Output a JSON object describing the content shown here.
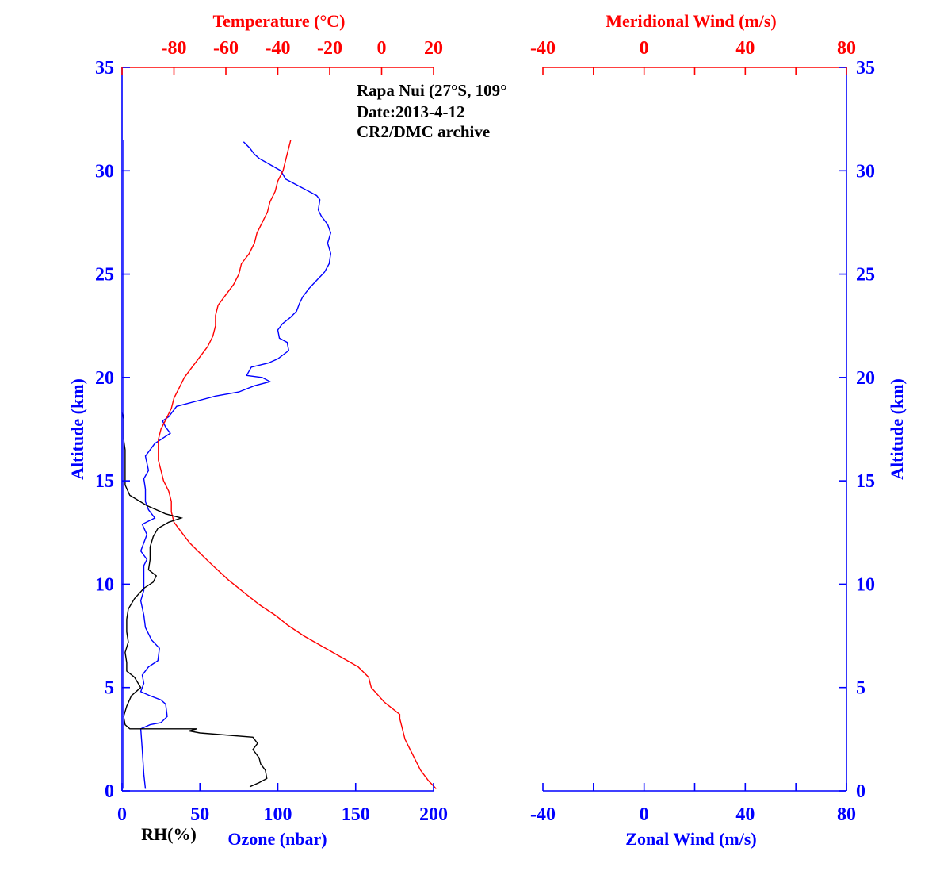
{
  "colors": {
    "blue": "#0000ff",
    "red": "#ff0000",
    "black": "#000000"
  },
  "annotation": {
    "line1": "Rapa Nui (27°S, 109°",
    "line2": "Date:2013-4-12",
    "line3": "CR2/DMC archive"
  },
  "chart_data": [
    {
      "type": "line",
      "panel": "left",
      "ylabel": "Altitude (km)",
      "ylim": [
        0,
        35
      ],
      "y_ticks": [
        0,
        5,
        10,
        15,
        20,
        25,
        30,
        35
      ],
      "y_tick_labels": [
        "0",
        "5",
        "10",
        "15",
        "20",
        "25",
        "30",
        "35"
      ],
      "bottom_axis": {
        "label": "Ozone (nbar)",
        "label2": "RH(%)",
        "lim": [
          0,
          200
        ],
        "ticks": [
          0,
          50,
          100,
          150,
          200
        ],
        "tick_labels": [
          "0",
          "50",
          "100",
          "150",
          "200"
        ]
      },
      "top_axis": {
        "label": "Temperature (°C)",
        "lim": [
          -100,
          20
        ],
        "ticks": [
          -100,
          -80,
          -60,
          -40,
          -20,
          0,
          20
        ],
        "tick_labels": [
          "-80",
          "-60",
          "-40",
          "-20",
          "0",
          "20"
        ],
        "labeled_ticks": [
          -80,
          -60,
          -40,
          -20,
          0,
          20
        ]
      },
      "series": [
        {
          "name": "Ozone",
          "axis": "bottom",
          "color": "#0000ff",
          "points": [
            [
              15,
              0.1
            ],
            [
              14,
              0.8
            ],
            [
              13,
              2.0
            ],
            [
              12,
              3.0
            ],
            [
              18,
              3.2
            ],
            [
              25,
              3.3
            ],
            [
              29,
              3.6
            ],
            [
              28,
              4.2
            ],
            [
              25,
              4.4
            ],
            [
              18,
              4.6
            ],
            [
              12,
              4.8
            ],
            [
              14,
              5.2
            ],
            [
              13,
              5.6
            ],
            [
              17,
              6.0
            ],
            [
              23,
              6.3
            ],
            [
              24,
              6.9
            ],
            [
              19,
              7.3
            ],
            [
              15,
              7.9
            ],
            [
              14,
              8.5
            ],
            [
              12,
              9.2
            ],
            [
              14,
              9.7
            ],
            [
              14,
              10.3
            ],
            [
              14,
              10.9
            ],
            [
              16,
              11.2
            ],
            [
              12,
              11.6
            ],
            [
              16,
              12.4
            ],
            [
              13,
              12.9
            ],
            [
              21,
              13.2
            ],
            [
              17,
              13.6
            ],
            [
              15,
              14.0
            ],
            [
              15,
              14.6
            ],
            [
              14,
              15.1
            ],
            [
              17,
              15.5
            ],
            [
              15,
              16.2
            ],
            [
              21,
              16.8
            ],
            [
              31,
              17.3
            ],
            [
              28,
              17.6
            ],
            [
              26,
              17.9
            ],
            [
              30,
              18.1
            ],
            [
              35,
              18.6
            ],
            [
              50,
              18.9
            ],
            [
              60,
              19.1
            ],
            [
              75,
              19.3
            ],
            [
              85,
              19.6
            ],
            [
              95,
              19.8
            ],
            [
              90,
              20.0
            ],
            [
              80,
              20.1
            ],
            [
              83,
              20.5
            ],
            [
              94,
              20.7
            ],
            [
              100,
              20.9
            ],
            [
              107,
              21.3
            ],
            [
              106,
              21.7
            ],
            [
              101,
              21.9
            ],
            [
              100,
              22.3
            ],
            [
              103,
              22.6
            ],
            [
              108,
              22.9
            ],
            [
              112,
              23.2
            ],
            [
              114,
              23.6
            ],
            [
              116,
              23.9
            ],
            [
              120,
              24.3
            ],
            [
              125,
              24.7
            ],
            [
              130,
              25.1
            ],
            [
              133,
              25.5
            ],
            [
              134,
              26.0
            ],
            [
              132,
              26.5
            ],
            [
              134,
              27.0
            ],
            [
              132,
              27.4
            ],
            [
              128,
              27.8
            ],
            [
              126,
              28.1
            ],
            [
              127,
              28.6
            ],
            [
              125,
              28.8
            ],
            [
              115,
              29.2
            ],
            [
              105,
              29.6
            ],
            [
              102,
              30.0
            ],
            [
              95,
              30.3
            ],
            [
              88,
              30.6
            ],
            [
              85,
              30.8
            ],
            [
              82,
              31.1
            ],
            [
              78,
              31.4
            ]
          ]
        },
        {
          "name": "Temperature",
          "axis": "top",
          "color": "#ff0000",
          "points": [
            [
              21,
              0.1
            ],
            [
              18,
              0.5
            ],
            [
              15,
              1.0
            ],
            [
              11,
              2.0
            ],
            [
              9,
              2.5
            ],
            [
              8,
              3.0
            ],
            [
              7,
              3.5
            ],
            [
              7,
              3.7
            ],
            [
              1,
              4.3
            ],
            [
              -4,
              5.0
            ],
            [
              -5,
              5.5
            ],
            [
              -9,
              6.0
            ],
            [
              -16,
              6.5
            ],
            [
              -23,
              7.0
            ],
            [
              -30,
              7.5
            ],
            [
              -36,
              8.0
            ],
            [
              -41,
              8.5
            ],
            [
              -47,
              9.0
            ],
            [
              -53,
              9.6
            ],
            [
              -59,
              10.2
            ],
            [
              -65,
              10.9
            ],
            [
              -70,
              11.5
            ],
            [
              -74,
              12.0
            ],
            [
              -77,
              12.5
            ],
            [
              -80,
              13.0
            ],
            [
              -81,
              13.5
            ],
            [
              -81,
              14.0
            ],
            [
              -82,
              14.5
            ],
            [
              -84,
              15.0
            ],
            [
              -85,
              15.5
            ],
            [
              -86,
              16.0
            ],
            [
              -86,
              16.5
            ],
            [
              -86,
              17.0
            ],
            [
              -85,
              17.5
            ],
            [
              -83,
              18.0
            ],
            [
              -81,
              18.5
            ],
            [
              -80,
              19.0
            ],
            [
              -78,
              19.5
            ],
            [
              -76,
              20.0
            ],
            [
              -73,
              20.5
            ],
            [
              -70,
              21.0
            ],
            [
              -67,
              21.5
            ],
            [
              -65,
              22.0
            ],
            [
              -64,
              22.5
            ],
            [
              -64,
              23.0
            ],
            [
              -63,
              23.5
            ],
            [
              -60,
              24.0
            ],
            [
              -57,
              24.5
            ],
            [
              -55,
              25.0
            ],
            [
              -54,
              25.5
            ],
            [
              -51,
              26.0
            ],
            [
              -49,
              26.5
            ],
            [
              -48,
              27.0
            ],
            [
              -46,
              27.5
            ],
            [
              -44,
              28.0
            ],
            [
              -43,
              28.5
            ],
            [
              -41,
              29.0
            ],
            [
              -40,
              29.5
            ],
            [
              -38,
              30.0
            ],
            [
              -37,
              30.5
            ],
            [
              -36,
              31.0
            ],
            [
              -35,
              31.5
            ]
          ]
        },
        {
          "name": "RH",
          "axis": "bottom",
          "color": "#000000",
          "points": [
            [
              82,
              0.2
            ],
            [
              88,
              0.4
            ],
            [
              93,
              0.6
            ],
            [
              92,
              1.0
            ],
            [
              89,
              1.3
            ],
            [
              88,
              1.6
            ],
            [
              84,
              2.0
            ],
            [
              87,
              2.3
            ],
            [
              84,
              2.6
            ],
            [
              50,
              2.8
            ],
            [
              43,
              2.9
            ],
            [
              48,
              3.0
            ],
            [
              5,
              3.0
            ],
            [
              2,
              3.2
            ],
            [
              1,
              3.6
            ],
            [
              3,
              4.1
            ],
            [
              6,
              4.6
            ],
            [
              12,
              5.0
            ],
            [
              8,
              5.5
            ],
            [
              3,
              5.8
            ],
            [
              3,
              6.2
            ],
            [
              2,
              6.7
            ],
            [
              4,
              7.2
            ],
            [
              3,
              7.7
            ],
            [
              3,
              8.3
            ],
            [
              4,
              8.8
            ],
            [
              8,
              9.3
            ],
            [
              14,
              9.8
            ],
            [
              20,
              10.1
            ],
            [
              22,
              10.4
            ],
            [
              17,
              10.7
            ],
            [
              18,
              11.2
            ],
            [
              18,
              11.8
            ],
            [
              20,
              12.3
            ],
            [
              23,
              12.7
            ],
            [
              30,
              13.0
            ],
            [
              38,
              13.2
            ],
            [
              28,
              13.4
            ],
            [
              16,
              13.8
            ],
            [
              5,
              14.3
            ],
            [
              2,
              14.8
            ],
            [
              2,
              15.5
            ],
            [
              2,
              16.0
            ],
            [
              2,
              16.5
            ],
            [
              1,
              17.0
            ],
            [
              1,
              17.5
            ],
            [
              1,
              18.0
            ],
            [
              0,
              18.3
            ]
          ]
        },
        {
          "name": "Altitude marker",
          "axis": "bottom",
          "color": "#0000ff",
          "points": [
            [
              1,
              0.1
            ],
            [
              1,
              31.5
            ]
          ]
        }
      ]
    },
    {
      "type": "line",
      "panel": "right",
      "ylabel": "Altitude (km)",
      "ylim": [
        0,
        35
      ],
      "y_ticks": [
        0,
        5,
        10,
        15,
        20,
        25,
        30,
        35
      ],
      "y_tick_labels": [
        "0",
        "5",
        "10",
        "15",
        "20",
        "25",
        "30",
        "35"
      ],
      "bottom_axis": {
        "label": "Zonal Wind (m/s)",
        "lim": [
          -40,
          80
        ],
        "ticks": [
          -40,
          -20,
          0,
          20,
          40,
          60,
          80
        ],
        "tick_labels": [
          "-40",
          "0",
          "40",
          "80"
        ],
        "labeled_ticks": [
          -40,
          0,
          40,
          80
        ]
      },
      "top_axis": {
        "label": "Meridional Wind (m/s)",
        "lim": [
          -40,
          80
        ],
        "ticks": [
          -40,
          -20,
          0,
          20,
          40,
          60,
          80
        ],
        "tick_labels": [
          "-40",
          "0",
          "40",
          "80"
        ],
        "labeled_ticks": [
          -40,
          0,
          40,
          80
        ]
      },
      "series": []
    }
  ]
}
